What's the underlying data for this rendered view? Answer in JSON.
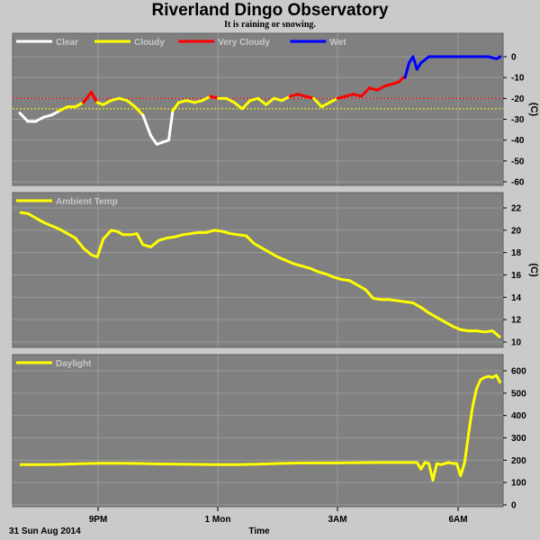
{
  "title": "Riverland Dingo Observatory",
  "subtitle": "It is raining or snowing.",
  "colors": {
    "background": "#cacaca",
    "panel": "#808080",
    "grid": "#9a9a9a",
    "clear": "#ffffff",
    "cloudy": "#ffff00",
    "very_cloudy": "#ff0000",
    "wet": "#0000ff",
    "ambient": "#ffff00",
    "daylight": "#ffff00"
  },
  "x_ticks": [
    "9PM",
    "1 Mon",
    "3AM",
    "6AM"
  ],
  "date_label": "31 Sun Aug 2014",
  "xlabel": "Time",
  "chart_data": [
    {
      "type": "line",
      "panel": "sky",
      "ylabel": "(C)",
      "ylim": [
        -60,
        5
      ],
      "yticks": [
        0,
        -10,
        -20,
        -30,
        -40,
        -50,
        -60
      ],
      "legend_placement": "top-left",
      "legend": [
        {
          "name": "Clear",
          "color": "#ffffff"
        },
        {
          "name": "Cloudy",
          "color": "#ffff00"
        },
        {
          "name": "Very Cloudy",
          "color": "#ff0000"
        },
        {
          "name": "Wet",
          "color": "#0000ff"
        }
      ],
      "thresholds": [
        {
          "value": -20,
          "color": "#ff0000"
        },
        {
          "value": -25,
          "color": "#ffff00"
        }
      ],
      "x_hours": [
        19.0,
        19.2,
        19.4,
        19.6,
        19.8,
        20.0,
        20.2,
        20.4,
        20.6,
        20.8,
        20.95,
        21.1,
        21.3,
        21.5,
        21.7,
        21.9,
        22.1,
        22.3,
        22.45,
        22.6,
        22.75,
        22.85,
        23.0,
        23.2,
        23.4,
        23.6,
        23.8,
        24.0,
        24.2,
        24.4,
        24.6,
        24.8,
        25.0,
        25.2,
        25.4,
        25.6,
        25.8,
        26.0,
        26.2,
        26.4,
        26.6,
        26.8,
        27.0,
        27.2,
        27.4,
        27.6,
        27.8,
        28.0,
        28.2,
        28.4,
        28.55,
        28.6,
        28.65,
        28.7,
        28.8,
        28.9,
        29.0,
        29.1,
        29.3,
        29.6,
        30.0,
        30.4,
        30.8,
        31.0,
        31.1
      ],
      "y_values": [
        -27,
        -31,
        -31,
        -29,
        -28,
        -26,
        -24,
        -24,
        -22,
        -17,
        -22,
        -23,
        -21,
        -20,
        -21,
        -24,
        -28,
        -38,
        -42,
        -41,
        -40,
        -26,
        -22,
        -21,
        -22,
        -21,
        -19,
        -20,
        -20,
        -22,
        -25,
        -21,
        -20,
        -23,
        -20,
        -21,
        -19,
        -18,
        -19,
        -20,
        -24,
        -22,
        -20,
        -19,
        -18,
        -19,
        -15,
        -16,
        -14,
        -13,
        -12,
        -11,
        -10,
        -10,
        -3,
        0,
        -6,
        -3,
        0,
        0,
        0,
        0,
        0,
        -1,
        0
      ]
    },
    {
      "type": "line",
      "panel": "ambient",
      "legend": [
        {
          "name": "Ambient Temp",
          "color": "#ffff00"
        }
      ],
      "ylabel": "(C)",
      "ylim": [
        9.5,
        22.5
      ],
      "yticks": [
        22,
        20,
        18,
        16,
        14,
        12,
        10
      ],
      "x_hours": [
        19.0,
        19.2,
        19.4,
        19.6,
        19.8,
        20.0,
        20.2,
        20.4,
        20.6,
        20.8,
        20.95,
        21.1,
        21.3,
        21.45,
        21.6,
        21.8,
        21.95,
        22.1,
        22.3,
        22.5,
        22.7,
        22.9,
        23.1,
        23.3,
        23.5,
        23.7,
        23.9,
        24.1,
        24.3,
        24.5,
        24.7,
        24.9,
        25.1,
        25.3,
        25.5,
        25.7,
        25.9,
        26.1,
        26.3,
        26.5,
        26.7,
        26.9,
        27.1,
        27.3,
        27.5,
        27.7,
        27.9,
        28.1,
        28.3,
        28.5,
        28.7,
        28.9,
        29.1,
        29.3,
        29.5,
        29.7,
        29.9,
        30.1,
        30.3,
        30.5,
        30.7,
        30.9,
        31.1
      ],
      "y_values": [
        21.6,
        21.5,
        21.1,
        20.7,
        20.4,
        20.1,
        19.7,
        19.3,
        18.4,
        17.8,
        17.6,
        19.2,
        20.0,
        19.9,
        19.6,
        19.6,
        19.7,
        18.7,
        18.5,
        19.1,
        19.3,
        19.4,
        19.6,
        19.7,
        19.8,
        19.8,
        20.0,
        19.9,
        19.7,
        19.6,
        19.5,
        18.8,
        18.4,
        18.0,
        17.6,
        17.3,
        17.0,
        16.8,
        16.6,
        16.3,
        16.1,
        15.8,
        15.6,
        15.5,
        15.1,
        14.7,
        13.9,
        13.8,
        13.8,
        13.7,
        13.6,
        13.5,
        13.1,
        12.6,
        12.2,
        11.8,
        11.4,
        11.1,
        11.0,
        11.0,
        10.9,
        11.0,
        10.4
      ]
    },
    {
      "type": "line",
      "panel": "daylight",
      "legend": [
        {
          "name": "Daylight",
          "color": "#ffff00"
        }
      ],
      "ylabel": "",
      "ylim": [
        0,
        630
      ],
      "yticks": [
        600,
        500,
        400,
        300,
        200,
        100,
        0
      ],
      "x_hours": [
        19.0,
        19.5,
        20.0,
        20.5,
        21.0,
        21.5,
        22.0,
        22.5,
        23.0,
        23.5,
        24.0,
        24.5,
        25.0,
        25.5,
        26.0,
        26.5,
        27.0,
        27.5,
        28.0,
        28.5,
        29.0,
        29.1,
        29.2,
        29.3,
        29.4,
        29.5,
        29.6,
        29.7,
        29.8,
        29.9,
        30.0,
        30.1,
        30.2,
        30.3,
        30.4,
        30.5,
        30.6,
        30.7,
        30.8,
        30.9,
        31.0,
        31.1
      ],
      "y_values": [
        180,
        180,
        181,
        184,
        186,
        186,
        185,
        183,
        182,
        181,
        180,
        180,
        182,
        185,
        187,
        188,
        188,
        189,
        190,
        190,
        190,
        160,
        190,
        185,
        110,
        185,
        180,
        185,
        190,
        185,
        185,
        130,
        190,
        320,
        440,
        520,
        560,
        570,
        575,
        570,
        580,
        545
      ]
    }
  ]
}
